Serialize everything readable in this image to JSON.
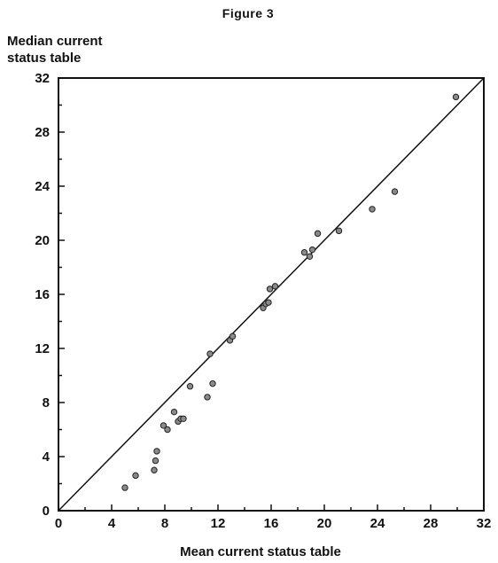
{
  "chart_data": {
    "type": "scatter",
    "title": "Figure 3",
    "ylabel_lines": [
      "Median current",
      "status table"
    ],
    "xlabel": "Mean current status table",
    "xlim": [
      0,
      32
    ],
    "ylim": [
      0,
      32
    ],
    "xticks": [
      0,
      4,
      8,
      12,
      16,
      20,
      24,
      28,
      32
    ],
    "yticks": [
      0,
      4,
      8,
      12,
      16,
      20,
      24,
      28,
      32
    ],
    "grid": false,
    "reference_line": [
      [
        0,
        0
      ],
      [
        32,
        32
      ]
    ],
    "points": [
      {
        "x": 5.0,
        "y": 1.7
      },
      {
        "x": 5.8,
        "y": 2.6
      },
      {
        "x": 7.2,
        "y": 3.0
      },
      {
        "x": 7.3,
        "y": 3.7
      },
      {
        "x": 7.4,
        "y": 4.4
      },
      {
        "x": 7.9,
        "y": 6.3
      },
      {
        "x": 8.2,
        "y": 6.0
      },
      {
        "x": 8.7,
        "y": 7.3
      },
      {
        "x": 9.0,
        "y": 6.6
      },
      {
        "x": 9.2,
        "y": 6.8
      },
      {
        "x": 9.4,
        "y": 6.8
      },
      {
        "x": 9.9,
        "y": 9.2
      },
      {
        "x": 11.2,
        "y": 8.4
      },
      {
        "x": 11.4,
        "y": 11.6
      },
      {
        "x": 11.6,
        "y": 9.4
      },
      {
        "x": 12.9,
        "y": 12.6
      },
      {
        "x": 13.1,
        "y": 12.9
      },
      {
        "x": 15.4,
        "y": 15.0
      },
      {
        "x": 15.6,
        "y": 15.3
      },
      {
        "x": 15.8,
        "y": 15.4
      },
      {
        "x": 15.9,
        "y": 16.4
      },
      {
        "x": 16.3,
        "y": 16.6
      },
      {
        "x": 18.5,
        "y": 19.1
      },
      {
        "x": 18.9,
        "y": 18.8
      },
      {
        "x": 19.1,
        "y": 19.3
      },
      {
        "x": 19.5,
        "y": 20.5
      },
      {
        "x": 21.1,
        "y": 20.7
      },
      {
        "x": 23.6,
        "y": 22.3
      },
      {
        "x": 25.3,
        "y": 23.6
      },
      {
        "x": 29.9,
        "y": 30.6
      }
    ]
  }
}
